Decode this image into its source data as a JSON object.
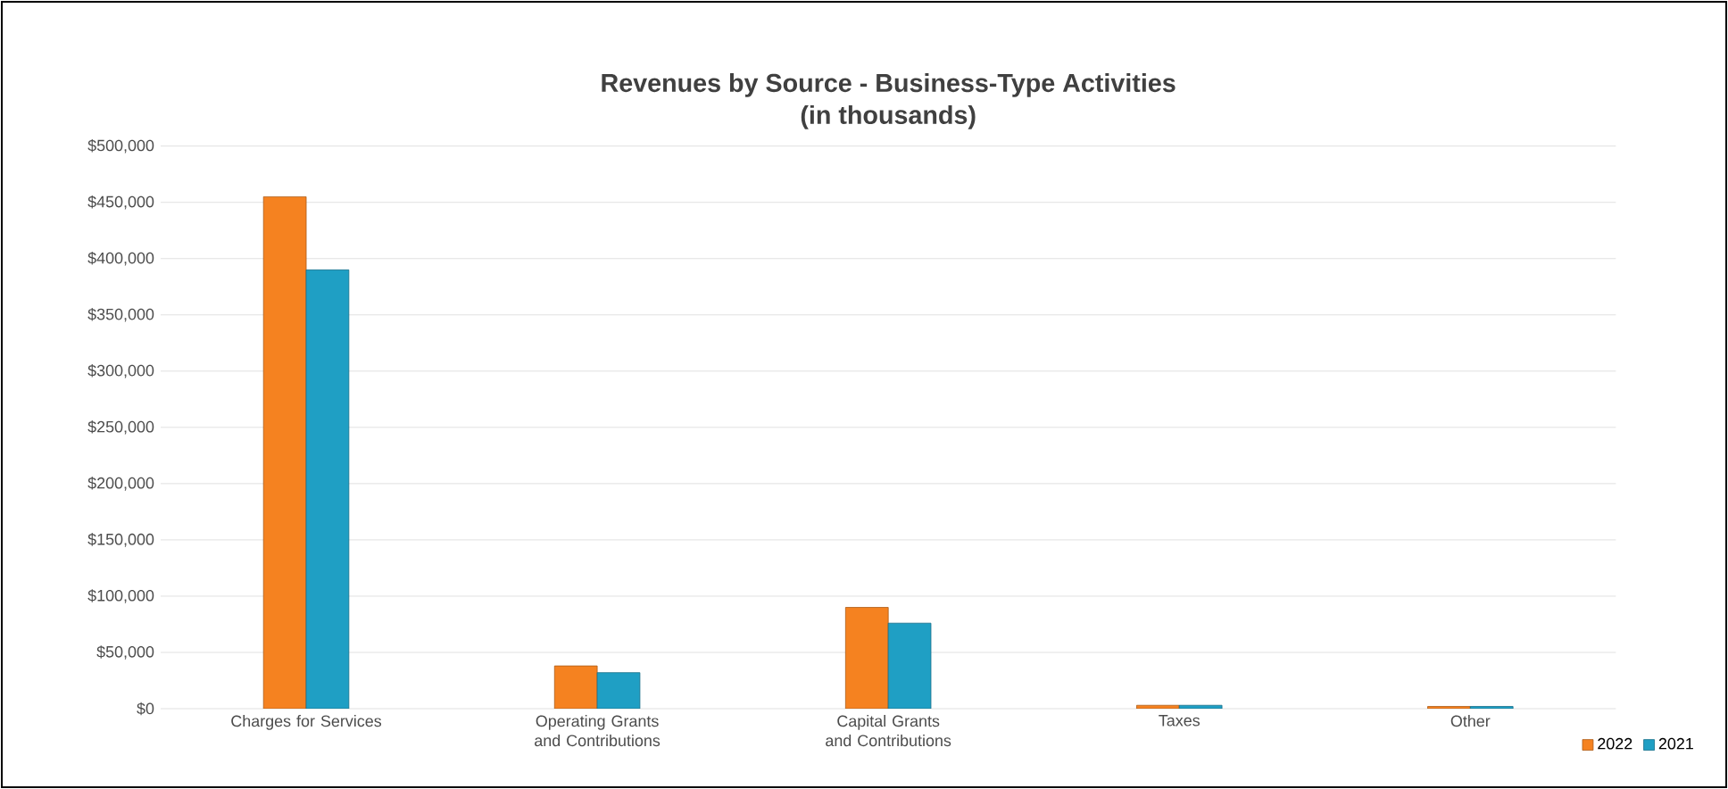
{
  "chart_data": {
    "type": "bar",
    "title": "Revenues by Source - Business-Type Activities",
    "subtitle": "(in thousands)",
    "categories": [
      "Charges for Services",
      "Operating Grants and Contributions",
      "Capital Grants and Contributions",
      "Taxes",
      "Other"
    ],
    "series": [
      {
        "name": "2022",
        "color": "#f58220",
        "values": [
          455000,
          38000,
          90000,
          3000,
          2000
        ]
      },
      {
        "name": "2021",
        "color": "#1f9fc4",
        "values": [
          390000,
          32000,
          76000,
          3000,
          2000
        ]
      }
    ],
    "ylim": [
      0,
      500000
    ],
    "yticks": [
      {
        "value": 0,
        "label": "$0"
      },
      {
        "value": 50000,
        "label": "$50,000"
      },
      {
        "value": 100000,
        "label": "$100,000"
      },
      {
        "value": 150000,
        "label": "$150,000"
      },
      {
        "value": 200000,
        "label": "$200,000"
      },
      {
        "value": 250000,
        "label": "$250,000"
      },
      {
        "value": 300000,
        "label": "$300,000"
      },
      {
        "value": 350000,
        "label": "$350,000"
      },
      {
        "value": 400000,
        "label": "$400,000"
      },
      {
        "value": 450000,
        "label": "$450,000"
      },
      {
        "value": 500000,
        "label": "$500,000"
      }
    ],
    "grid": "y",
    "legend": "bottom right"
  }
}
